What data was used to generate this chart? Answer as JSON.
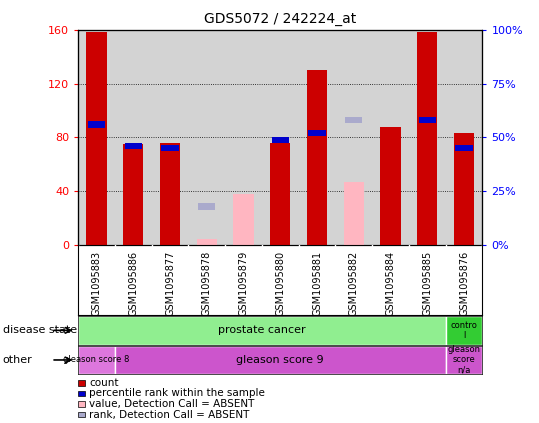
{
  "title": "GDS5072 / 242224_at",
  "samples": [
    "GSM1095883",
    "GSM1095886",
    "GSM1095877",
    "GSM1095878",
    "GSM1095879",
    "GSM1095880",
    "GSM1095881",
    "GSM1095882",
    "GSM1095884",
    "GSM1095885",
    "GSM1095876"
  ],
  "count_values": [
    158,
    75,
    76,
    null,
    null,
    76,
    130,
    null,
    88,
    158,
    83
  ],
  "percentile_values": [
    56,
    46,
    45,
    null,
    null,
    49,
    52,
    null,
    null,
    58,
    45
  ],
  "absent_value_values": [
    null,
    null,
    null,
    5,
    38,
    null,
    null,
    47,
    null,
    null,
    null
  ],
  "absent_rank_values": [
    null,
    null,
    null,
    18,
    null,
    null,
    null,
    58,
    null,
    null,
    null
  ],
  "ylim_left": [
    0,
    160
  ],
  "ylim_right": [
    0,
    100
  ],
  "yticks_left": [
    0,
    40,
    80,
    120,
    160
  ],
  "yticks_right": [
    0,
    25,
    50,
    75,
    100
  ],
  "ytick_labels_left": [
    "0",
    "40",
    "80",
    "120",
    "160"
  ],
  "ytick_labels_right": [
    "0%",
    "25%",
    "50%",
    "75%",
    "100%"
  ],
  "bar_color_red": "#cc0000",
  "bar_color_blue": "#0000cc",
  "bar_color_pink": "#ffb6c1",
  "bar_color_lightblue": "#aaaacc",
  "bar_width": 0.55,
  "bg_color": "#d3d3d3",
  "prostate_green": "#90ee90",
  "control_green": "#33cc33",
  "gleason8_purple": "#dd77dd",
  "gleason9_purple": "#cc55cc",
  "gleasonNA_purple": "#cc55cc",
  "disease_state_main_label": "disease state",
  "other_main_label": "other",
  "legend_items": [
    "count",
    "percentile rank within the sample",
    "value, Detection Call = ABSENT",
    "rank, Detection Call = ABSENT"
  ]
}
